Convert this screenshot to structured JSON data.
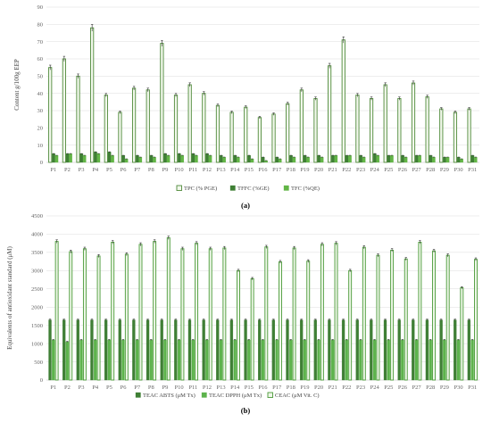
{
  "colors": {
    "tpc_fill": "#f2f8ec",
    "tpc_stroke": "#4f8a3a",
    "dark_green": "#3f7f35",
    "medium_green": "#62b546",
    "light_green": "#5db34c",
    "ceac_fill": "#eef7e8",
    "ceac_stroke": "#4a9a38"
  },
  "chart_data": [
    {
      "type": "bar",
      "title": "",
      "ylabel": "Content g/100g EEP",
      "xlabel": "",
      "ylim": [
        0,
        90
      ],
      "yticks": [
        "0",
        "10",
        "20",
        "30",
        "40",
        "50",
        "60",
        "70",
        "80",
        "90"
      ],
      "grid": true,
      "legend_position": "bottom",
      "categories": [
        "P1",
        "P2",
        "P3",
        "P4",
        "P5",
        "P6",
        "P7",
        "P8",
        "P9",
        "P10",
        "P11",
        "P12",
        "P13",
        "P14",
        "P15",
        "P16",
        "P17",
        "P18",
        "P19",
        "P20",
        "P21",
        "P22",
        "P23",
        "P24",
        "P25",
        "P26",
        "P27",
        "P28",
        "P29",
        "P30",
        "P31"
      ],
      "series": [
        {
          "name": "TPC (% PGE)",
          "values": [
            55,
            60,
            50,
            78,
            39,
            29,
            43,
            42,
            69,
            39,
            45,
            40,
            33,
            29,
            32,
            26,
            28,
            34,
            42,
            37,
            56,
            71,
            39,
            37,
            45,
            37,
            46,
            38,
            31,
            29,
            31
          ]
        },
        {
          "name": "TFFC (%GE)",
          "values": [
            5,
            5,
            5,
            6,
            6,
            4,
            4,
            4,
            5,
            5,
            5,
            5,
            4,
            4,
            4,
            3,
            3,
            4,
            4,
            4,
            4,
            4,
            4,
            5,
            4,
            4,
            4,
            4,
            3,
            3,
            4
          ]
        },
        {
          "name": "TFC (%QE)",
          "values": [
            4,
            5,
            4,
            5,
            4,
            2,
            3,
            3,
            4,
            4,
            4,
            4,
            3,
            3,
            2,
            1,
            2,
            3,
            3,
            3,
            4,
            4,
            3,
            4,
            4,
            3,
            4,
            3,
            3,
            2,
            3
          ]
        }
      ],
      "panel_label": "(a)"
    },
    {
      "type": "bar",
      "title": "",
      "ylabel": "Equivalents of antioxidant standard (μM)",
      "xlabel": "",
      "ylim": [
        0,
        4500
      ],
      "yticks": [
        "0",
        "500",
        "1000",
        "1500",
        "2000",
        "2500",
        "3000",
        "3500",
        "4000",
        "4500"
      ],
      "grid": true,
      "legend_position": "bottom",
      "categories": [
        "P1",
        "P2",
        "P3",
        "P4",
        "P5",
        "P6",
        "P7",
        "P8",
        "P9",
        "P10",
        "P11",
        "P12",
        "P13",
        "P14",
        "P15",
        "P16",
        "P17",
        "P18",
        "P19",
        "P20",
        "P21",
        "P22",
        "P23",
        "P24",
        "P25",
        "P26",
        "P27",
        "P28",
        "P29",
        "P30",
        "P31"
      ],
      "series": [
        {
          "name": "TEAC ABTS (μM Tx)",
          "values": [
            1650,
            1650,
            1650,
            1650,
            1650,
            1650,
            1650,
            1650,
            1650,
            1650,
            1650,
            1650,
            1650,
            1650,
            1650,
            1650,
            1650,
            1650,
            1650,
            1650,
            1650,
            1650,
            1650,
            1650,
            1650,
            1650,
            1650,
            1650,
            1650,
            1650,
            1650
          ]
        },
        {
          "name": "TEAC DPPH (μM Tx)",
          "values": [
            1100,
            1050,
            1100,
            1100,
            1100,
            1100,
            1100,
            1100,
            1100,
            1100,
            1100,
            1100,
            1100,
            1100,
            1100,
            1100,
            1100,
            1100,
            1100,
            1100,
            1100,
            1100,
            1100,
            1100,
            1100,
            1100,
            1100,
            1100,
            1100,
            1100,
            1100
          ]
        },
        {
          "name": "CEAC (μM Vit. C)",
          "values": [
            3800,
            3520,
            3600,
            3400,
            3780,
            3450,
            3720,
            3800,
            3900,
            3600,
            3750,
            3600,
            3620,
            3000,
            2780,
            3650,
            3240,
            3620,
            3260,
            3720,
            3750,
            3000,
            3640,
            3420,
            3560,
            3320,
            3780,
            3540,
            3420,
            2530,
            3310
          ]
        }
      ],
      "panel_label": "(b)"
    }
  ]
}
